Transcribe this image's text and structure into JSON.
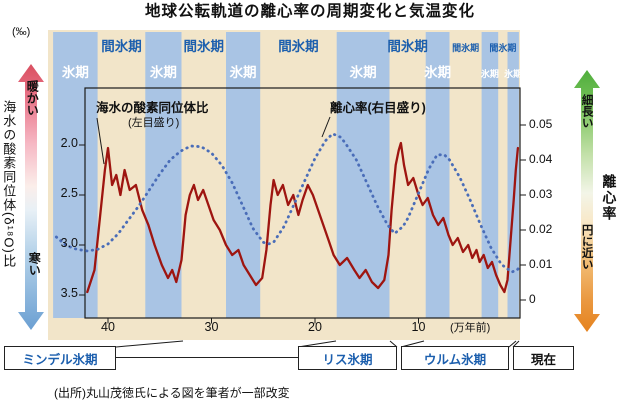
{
  "title": "地球公転軌道の離心率の周期変化と気温変化",
  "source": "(出所)丸山茂徳氏による図を筆者が一部改変",
  "left_axis": {
    "unit": "(‰)",
    "label": "海水の酸素同位体(δ¹⁸O)比",
    "warm": "暖かい",
    "cold": "寒い",
    "ticks": [
      "2.0",
      "2.5",
      "3.0",
      "3.5"
    ]
  },
  "right_axis": {
    "label": "離心率",
    "elongated": "細長い",
    "circular": "円に近い",
    "ticks": [
      "0.05",
      "0.04",
      "0.03",
      "0.02",
      "0.01",
      "0"
    ]
  },
  "x_axis": {
    "ticks": [
      "40",
      "30",
      "20",
      "10"
    ],
    "unit": "(万年前)"
  },
  "legend": {
    "isotope": "海水の酸素同位体比",
    "isotope_sub": "(左目盛り)",
    "eccentricity": "離心率(右目盛り)"
  },
  "period_labels": {
    "glacial": "氷期",
    "interglacial": "間氷期"
  },
  "eras": [
    {
      "label": "ミンデル氷期"
    },
    {
      "label": "リス氷期"
    },
    {
      "label": "ウルム氷期"
    },
    {
      "label": "現在"
    }
  ],
  "colors": {
    "beige": "#f2e5c9",
    "band": "#a9c4e4",
    "interglacial_text": "#1c5fae",
    "glacial_text": "#ffffff",
    "isotope_line": "#9e1510",
    "eccentricity_line": "#4a6db8",
    "ink": "#1a1a1a",
    "warm_arrow": "#d94f60",
    "cold_arrow": "#6b9fd2",
    "elongated_arrow": "#4fae3c",
    "circular_arrow": "#e5821e"
  },
  "chart_data": {
    "type": "line",
    "title": "地球公転軌道の離心率の周期変化と気温変化",
    "x_unit": "万年前",
    "x_range": [
      46,
      0
    ],
    "glacial_bands": [
      [
        45.3,
        41.0
      ],
      [
        36.4,
        32.9
      ],
      [
        28.6,
        25.3
      ],
      [
        17.9,
        12.8
      ],
      [
        9.3,
        7.0
      ],
      [
        3.9,
        2.3
      ],
      [
        1.4,
        0.3
      ]
    ],
    "series": [
      {
        "name": "海水の酸素同位体比",
        "axis": "left",
        "ylim": [
          2.0,
          3.5
        ],
        "inverted": true,
        "unit": "‰",
        "color": "#9e1510",
        "style": "solid",
        "points": [
          [
            42.0,
            3.47
          ],
          [
            41.3,
            3.25
          ],
          [
            40.8,
            2.75
          ],
          [
            40.3,
            2.25
          ],
          [
            40.0,
            2.03
          ],
          [
            39.6,
            2.4
          ],
          [
            39.2,
            2.3
          ],
          [
            38.8,
            2.5
          ],
          [
            38.4,
            2.25
          ],
          [
            37.9,
            2.45
          ],
          [
            37.3,
            2.4
          ],
          [
            36.7,
            2.65
          ],
          [
            36.1,
            2.8
          ],
          [
            35.5,
            3.0
          ],
          [
            34.8,
            3.2
          ],
          [
            34.2,
            3.33
          ],
          [
            33.8,
            3.25
          ],
          [
            33.4,
            3.37
          ],
          [
            32.9,
            3.15
          ],
          [
            32.5,
            2.7
          ],
          [
            32.1,
            2.5
          ],
          [
            31.7,
            2.4
          ],
          [
            31.3,
            2.55
          ],
          [
            30.8,
            2.45
          ],
          [
            30.3,
            2.6
          ],
          [
            29.8,
            2.75
          ],
          [
            29.2,
            2.85
          ],
          [
            28.6,
            3.0
          ],
          [
            28.0,
            3.1
          ],
          [
            27.4,
            3.05
          ],
          [
            26.9,
            3.2
          ],
          [
            26.3,
            3.3
          ],
          [
            25.7,
            3.4
          ],
          [
            25.1,
            3.33
          ],
          [
            24.7,
            3.05
          ],
          [
            24.3,
            2.6
          ],
          [
            24.0,
            2.35
          ],
          [
            23.6,
            2.5
          ],
          [
            23.1,
            2.4
          ],
          [
            22.6,
            2.6
          ],
          [
            22.1,
            2.5
          ],
          [
            21.6,
            2.7
          ],
          [
            21.2,
            2.55
          ],
          [
            20.7,
            2.4
          ],
          [
            20.2,
            2.5
          ],
          [
            19.7,
            2.65
          ],
          [
            19.2,
            2.8
          ],
          [
            18.7,
            2.95
          ],
          [
            18.2,
            3.1
          ],
          [
            17.6,
            3.2
          ],
          [
            16.9,
            3.13
          ],
          [
            16.2,
            3.25
          ],
          [
            15.7,
            3.33
          ],
          [
            15.1,
            3.25
          ],
          [
            14.5,
            3.37
          ],
          [
            13.9,
            3.43
          ],
          [
            13.3,
            3.35
          ],
          [
            12.9,
            3.1
          ],
          [
            12.6,
            2.65
          ],
          [
            12.2,
            2.2
          ],
          [
            11.9,
            2.05
          ],
          [
            11.7,
            1.98
          ],
          [
            11.4,
            2.2
          ],
          [
            11.0,
            2.4
          ],
          [
            10.5,
            2.33
          ],
          [
            10.0,
            2.5
          ],
          [
            9.6,
            2.6
          ],
          [
            9.1,
            2.53
          ],
          [
            8.6,
            2.7
          ],
          [
            8.1,
            2.8
          ],
          [
            7.6,
            2.73
          ],
          [
            7.1,
            2.9
          ],
          [
            6.7,
            3.0
          ],
          [
            6.2,
            2.93
          ],
          [
            5.7,
            3.07
          ],
          [
            5.2,
            3.0
          ],
          [
            4.8,
            3.13
          ],
          [
            4.4,
            3.05
          ],
          [
            4.1,
            3.17
          ],
          [
            3.7,
            3.1
          ],
          [
            3.3,
            3.23
          ],
          [
            2.9,
            3.17
          ],
          [
            2.5,
            3.3
          ],
          [
            2.1,
            3.4
          ],
          [
            1.7,
            3.47
          ],
          [
            1.4,
            3.35
          ],
          [
            1.1,
            2.95
          ],
          [
            0.8,
            2.55
          ],
          [
            0.6,
            2.25
          ],
          [
            0.4,
            2.03
          ]
        ]
      },
      {
        "name": "離心率",
        "axis": "right",
        "ylim": [
          0,
          0.05
        ],
        "color": "#4a6db8",
        "style": "dotted",
        "points": [
          [
            45.0,
            0.018
          ],
          [
            44,
            0.0155
          ],
          [
            43,
            0.0145
          ],
          [
            42,
            0.014
          ],
          [
            41,
            0.0145
          ],
          [
            40,
            0.016
          ],
          [
            39,
            0.019
          ],
          [
            38,
            0.023
          ],
          [
            37,
            0.027
          ],
          [
            36,
            0.0315
          ],
          [
            35,
            0.036
          ],
          [
            34,
            0.04
          ],
          [
            33,
            0.0425
          ],
          [
            32,
            0.044
          ],
          [
            31,
            0.0438
          ],
          [
            30,
            0.042
          ],
          [
            29,
            0.0385
          ],
          [
            28,
            0.0335
          ],
          [
            27,
            0.027
          ],
          [
            26,
            0.0205
          ],
          [
            25,
            0.0165
          ],
          [
            24.5,
            0.016
          ],
          [
            24,
            0.0165
          ],
          [
            23,
            0.021
          ],
          [
            22,
            0.0275
          ],
          [
            21,
            0.034
          ],
          [
            20,
            0.0405
          ],
          [
            19,
            0.0455
          ],
          [
            18.3,
            0.0475
          ],
          [
            17.5,
            0.0465
          ],
          [
            17,
            0.0445
          ],
          [
            16,
            0.04
          ],
          [
            15,
            0.0335
          ],
          [
            14,
            0.027
          ],
          [
            13,
            0.0215
          ],
          [
            12.3,
            0.019
          ],
          [
            11.5,
            0.021
          ],
          [
            11,
            0.0235
          ],
          [
            10,
            0.0305
          ],
          [
            9,
            0.0375
          ],
          [
            8.2,
            0.0415
          ],
          [
            7.5,
            0.0415
          ],
          [
            7,
            0.04
          ],
          [
            6,
            0.035
          ],
          [
            5,
            0.0285
          ],
          [
            4,
            0.0215
          ],
          [
            3,
            0.015
          ],
          [
            2,
            0.0102
          ],
          [
            1,
            0.008
          ],
          [
            0.5,
            0.0085
          ],
          [
            0.2,
            0.0095
          ]
        ]
      }
    ]
  }
}
